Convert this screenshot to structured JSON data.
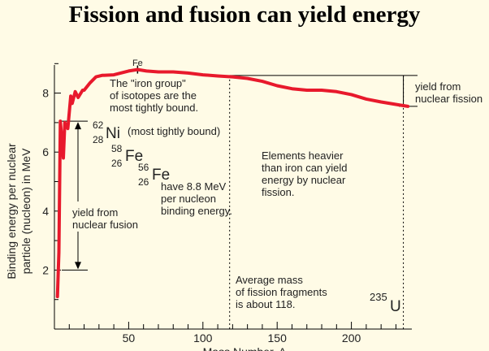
{
  "title": "Fission and fusion can yield energy",
  "chart_data": {
    "type": "line",
    "xlabel": "Mass Number, A",
    "ylabel_lines": [
      "Binding energy per nuclear",
      "particle (nucleon) in MeV"
    ],
    "xlim": [
      0,
      240
    ],
    "ylim": [
      0,
      9
    ],
    "xticks": [
      50,
      100,
      150,
      200
    ],
    "yticks": [
      2,
      4,
      6,
      8
    ],
    "series": [
      {
        "color": "#e8192c",
        "x": [
          2,
          3,
          4,
          6,
          7,
          9,
          11,
          12,
          14,
          16,
          19,
          20,
          24,
          28,
          32,
          40,
          50,
          56,
          62,
          70,
          80,
          90,
          100,
          110,
          120,
          130,
          140,
          150,
          160,
          170,
          180,
          190,
          200,
          210,
          220,
          232,
          238
        ],
        "y": [
          1.1,
          2.6,
          7.05,
          5.8,
          7.0,
          6.8,
          7.9,
          7.65,
          8.05,
          7.85,
          8.1,
          8.1,
          8.35,
          8.55,
          8.6,
          8.62,
          8.75,
          8.8,
          8.75,
          8.72,
          8.72,
          8.68,
          8.62,
          8.58,
          8.55,
          8.5,
          8.4,
          8.25,
          8.15,
          8.1,
          8.1,
          8.05,
          7.95,
          7.8,
          7.7,
          7.6,
          7.55
        ]
      }
    ],
    "peak_label": "Fe",
    "annotations": {
      "iron_group": [
        "The \"iron group\"",
        "of isotopes are the",
        "most tightly bound."
      ],
      "ni62": {
        "mass": "62",
        "z": "28",
        "symbol": "Ni",
        "note": "(most tightly bound)"
      },
      "fe58": {
        "mass": "58",
        "z": "26",
        "symbol": "Fe"
      },
      "fe56": {
        "mass": "56",
        "z": "26",
        "symbol": "Fe"
      },
      "fe_note": [
        "have 8.8 MeV",
        "per nucleon",
        "binding energy."
      ],
      "fusion": [
        "yield from",
        "nuclear fusion"
      ],
      "heavier": [
        "Elements heavier",
        "than iron can yield",
        "energy by nuclear",
        "fission."
      ],
      "fission_yield": [
        "yield from",
        "nuclear fission"
      ],
      "average": [
        "Average mass",
        "of fission fragments",
        "is about 118."
      ],
      "u235": {
        "mass": "235",
        "symbol": "U"
      }
    }
  }
}
